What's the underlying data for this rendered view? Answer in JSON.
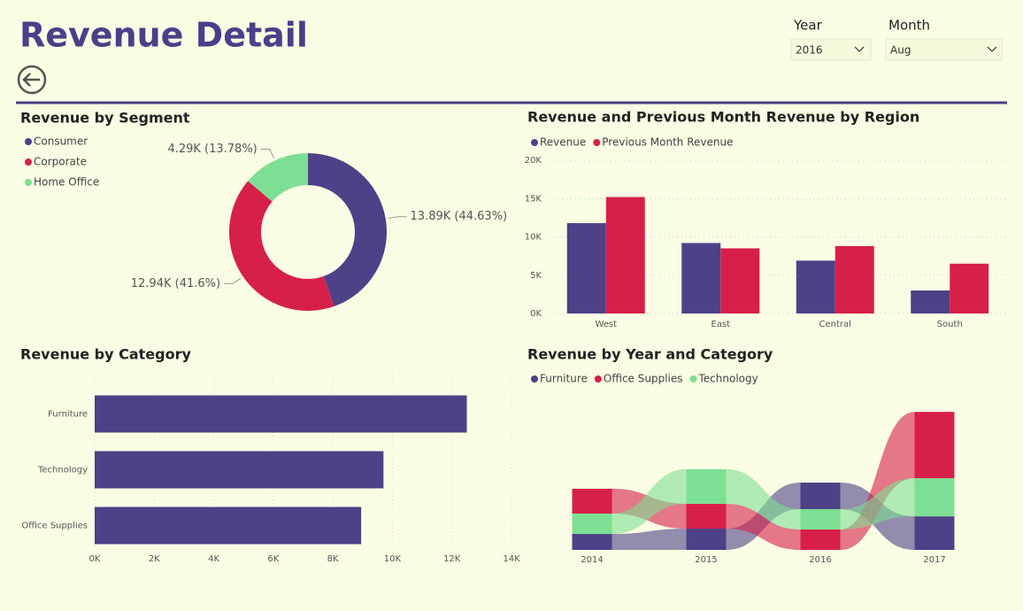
{
  "header": {
    "title": "Revenue Detail"
  },
  "slicers": [
    {
      "label": "Year",
      "value": "2016"
    },
    {
      "label": "Month",
      "value": "Aug"
    }
  ],
  "chart_data": [
    {
      "type": "pie",
      "title": "Revenue by Segment",
      "donut": true,
      "categories": [
        "Consumer",
        "Corporate",
        "Home Office"
      ],
      "values": [
        13890,
        12940,
        4290
      ],
      "value_labels": [
        "13.89K (44.63%)",
        "12.94K (41.6%)",
        "4.29K (13.78%)"
      ],
      "colors": [
        "#4e4187",
        "#d6204a",
        "#7ddf93"
      ]
    },
    {
      "type": "bar",
      "title": "Revenue and Previous Month Revenue by Region",
      "categories": [
        "West",
        "East",
        "Central",
        "South"
      ],
      "series": [
        {
          "name": "Revenue",
          "color": "#4e4187",
          "values": [
            11800,
            9200,
            6900,
            3000
          ]
        },
        {
          "name": "Previous Month Revenue",
          "color": "#d6204a",
          "values": [
            15200,
            8500,
            8800,
            6500
          ]
        }
      ],
      "ylim": [
        0,
        20000
      ],
      "yticks": [
        {
          "value": 0,
          "label": "0K"
        },
        {
          "value": 5000,
          "label": "5K"
        },
        {
          "value": 10000,
          "label": "10K"
        },
        {
          "value": 15000,
          "label": "15K"
        },
        {
          "value": 20000,
          "label": "20K"
        }
      ],
      "grid": true
    },
    {
      "type": "bar",
      "title": "Revenue by Category",
      "orientation": "horizontal",
      "categories": [
        "Furniture",
        "Technology",
        "Office Supplies"
      ],
      "values": [
        12500,
        9700,
        8950
      ],
      "color": "#4e4187",
      "xlim": [
        0,
        14000
      ],
      "xticks": [
        {
          "value": 0,
          "label": "0K"
        },
        {
          "value": 2000,
          "label": "2K"
        },
        {
          "value": 4000,
          "label": "4K"
        },
        {
          "value": 6000,
          "label": "6K"
        },
        {
          "value": 8000,
          "label": "8K"
        },
        {
          "value": 10000,
          "label": "10K"
        },
        {
          "value": 12000,
          "label": "12K"
        },
        {
          "value": 14000,
          "label": "14K"
        }
      ],
      "grid": true
    },
    {
      "type": "ribbon",
      "title": "Revenue by Year and Category",
      "categories": [
        "2014",
        "2015",
        "2016",
        "2017"
      ],
      "series": [
        {
          "name": "Furniture",
          "color": "#4e4187",
          "values": [
            7500,
            10000,
            12500,
            15800
          ]
        },
        {
          "name": "Office Supplies",
          "color": "#d6204a",
          "values": [
            11700,
            11700,
            9600,
            31300
          ]
        },
        {
          "name": "Technology",
          "color": "#7ddf93",
          "values": [
            9600,
            16300,
            9600,
            17900
          ]
        }
      ]
    }
  ]
}
